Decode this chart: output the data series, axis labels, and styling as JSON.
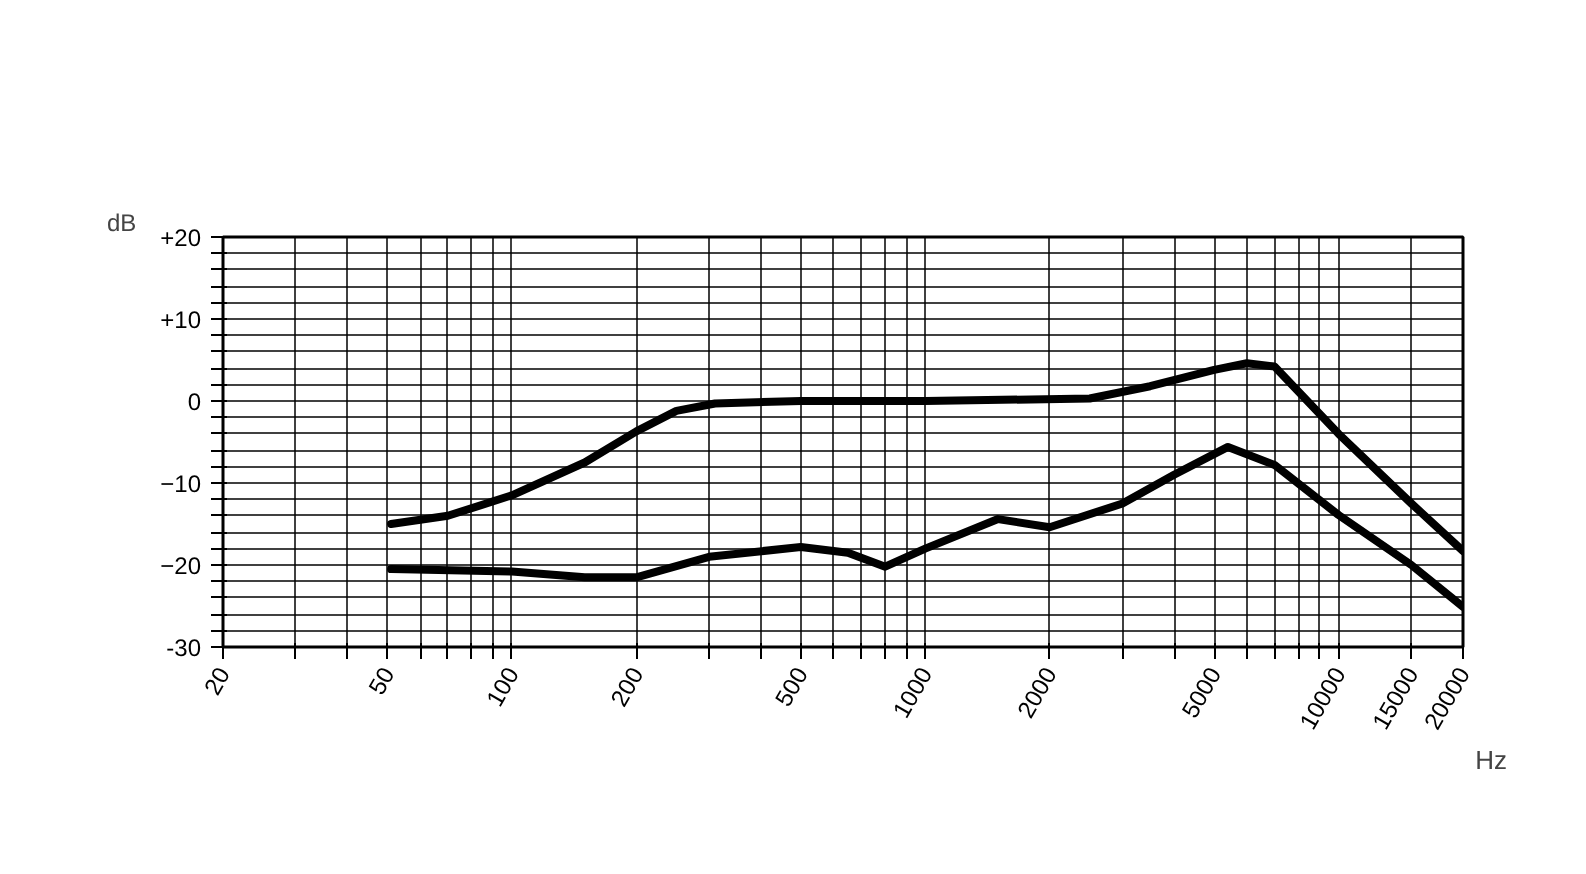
{
  "chart_data": {
    "type": "line",
    "xlabel": "Hz",
    "ylabel": "dB",
    "log": "x",
    "grid": true,
    "marker": "none",
    "line_style": "solid",
    "xlim": [
      20,
      20000
    ],
    "ylim": [
      -30,
      20
    ],
    "xticks": [
      20,
      {
        "value": 30,
        "label": null
      },
      {
        "value": 40,
        "label": null
      },
      50,
      {
        "value": 60,
        "label": null
      },
      {
        "value": 70,
        "label": null
      },
      {
        "value": 80,
        "label": null
      },
      {
        "value": 90,
        "label": null
      },
      100,
      200,
      {
        "value": 300,
        "label": null
      },
      {
        "value": 400,
        "label": null
      },
      500,
      {
        "value": 600,
        "label": null
      },
      {
        "value": 700,
        "label": null
      },
      {
        "value": 800,
        "label": null
      },
      {
        "value": 900,
        "label": null
      },
      1000,
      2000,
      {
        "value": 3000,
        "label": null
      },
      {
        "value": 4000,
        "label": null
      },
      5000,
      {
        "value": 6000,
        "label": null
      },
      {
        "value": 7000,
        "label": null
      },
      {
        "value": 8000,
        "label": null
      },
      {
        "value": 9000,
        "label": null
      },
      10000,
      15000,
      20000
    ],
    "yticks": [
      -30,
      {
        "value": -28,
        "label": null
      },
      {
        "value": -26,
        "label": null
      },
      {
        "value": -24,
        "label": null
      },
      {
        "value": -22,
        "label": null
      },
      {
        "value": -20,
        "label": "−20"
      },
      {
        "value": -18,
        "label": null
      },
      {
        "value": -16,
        "label": null
      },
      {
        "value": -14,
        "label": null
      },
      {
        "value": -12,
        "label": null
      },
      {
        "value": -10,
        "label": "−10"
      },
      {
        "value": -8,
        "label": null
      },
      {
        "value": -6,
        "label": null
      },
      {
        "value": -4,
        "label": null
      },
      {
        "value": -2,
        "label": null
      },
      0,
      {
        "value": 2,
        "label": null
      },
      {
        "value": 4,
        "label": null
      },
      {
        "value": 6,
        "label": null
      },
      {
        "value": 8,
        "label": null
      },
      {
        "value": 10,
        "label": "+10"
      },
      {
        "value": 12,
        "label": null
      },
      {
        "value": 14,
        "label": null
      },
      {
        "value": 16,
        "label": null
      },
      {
        "value": 18,
        "label": null
      },
      {
        "value": 20,
        "label": "+20"
      }
    ],
    "series": [
      {
        "color": "#000000",
        "x": [
          51,
          70,
          100,
          150,
          200,
          250,
          310,
          500,
          1000,
          2500,
          3500,
          5000,
          6000,
          7000,
          10000,
          15000,
          20000
        ],
        "values": [
          -15,
          -14,
          -11.5,
          -7.5,
          -3.7,
          -1.2,
          -0.3,
          0,
          0,
          0.3,
          1.8,
          3.8,
          4.6,
          4.2,
          -4,
          -12.5,
          -18.3
        ]
      },
      {
        "color": "#000000",
        "x": [
          51,
          100,
          150,
          200,
          300,
          500,
          650,
          800,
          1000,
          1500,
          2000,
          3000,
          4000,
          5400,
          7000,
          10000,
          15000,
          20000
        ],
        "values": [
          -20.5,
          -20.8,
          -21.5,
          -21.5,
          -19,
          -17.8,
          -18.5,
          -20.2,
          -18,
          -14.4,
          -15.4,
          -12.5,
          -9,
          -5.6,
          -7.8,
          -13.9,
          -20,
          -25.1
        ]
      }
    ]
  }
}
